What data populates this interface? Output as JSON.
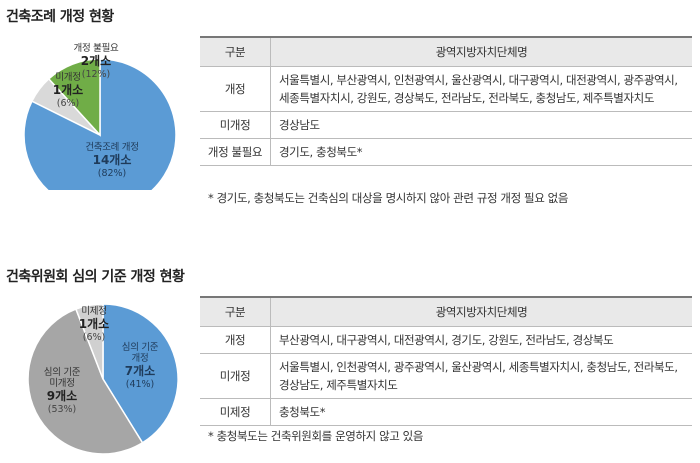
{
  "section1": {
    "title": "건축조례 개정 현황",
    "table": {
      "headers": [
        "구분",
        "광역지방자치단체명"
      ],
      "rows": [
        {
          "category": "개정",
          "names": "서울특별시, 부산광역시, 인천광역시, 울산광역시, 대구광역시, 대전광역시, 광주광역시, 세종특별자치시, 강원도, 경상북도, 전라남도, 전라북도, 충청남도, 제주특별자치도"
        },
        {
          "category": "미개정",
          "names": "경상남도"
        },
        {
          "category": "개정 불필요",
          "names": "경기도, 충청북도*"
        }
      ]
    },
    "note": "* 경기도, 충청북도는 건축심의 대상을 명시하지 않아 관련 규정 개정 필요 없음"
  },
  "section2": {
    "title": "건축위원회 심의 기준 개정 현황",
    "table": {
      "headers": [
        "구분",
        "광역지방자치단체명"
      ],
      "rows": [
        {
          "category": "개정",
          "names": "부산광역시, 대구광역시, 대전광역시, 경기도, 강원도, 전라남도, 경상북도"
        },
        {
          "category": "미개정",
          "names": "서울특별시, 인천광역시, 광주광역시, 울산광역시, 세종특별자치시, 충청남도, 전라북도, 경상남도, 제주특별자치도"
        },
        {
          "category": "미제정",
          "names": "충청북도*"
        }
      ]
    },
    "note": "* 충청북도는 건축위원회를 운영하지 않고 있음"
  },
  "chart_data": [
    {
      "type": "pie",
      "title": "건축조례 개정 현황",
      "slices": [
        {
          "label": "건축조례 개정",
          "count": "14개소",
          "value": 14,
          "pct": "(82%)",
          "color": "#5b9bd5"
        },
        {
          "label": "미개정",
          "count": "1개소",
          "value": 1,
          "pct": "(6%)",
          "color": "#d9d9d9"
        },
        {
          "label": "개정 불필요",
          "count": "2개소",
          "value": 2,
          "pct": "(12%)",
          "color": "#70ad47"
        }
      ]
    },
    {
      "type": "pie",
      "title": "건축위원회 심의 기준 개정 현황",
      "slices": [
        {
          "label": "심의 기준 개정",
          "count": "7개소",
          "value": 7,
          "pct": "(41%)",
          "color": "#5b9bd5"
        },
        {
          "label": "심의 기준 미개정",
          "count": "9개소",
          "value": 9,
          "pct": "(53%)",
          "color": "#a6a6a6"
        },
        {
          "label": "미제정",
          "count": "1개소",
          "value": 1,
          "pct": "(6%)",
          "color": "#d0d0d0"
        }
      ]
    }
  ]
}
